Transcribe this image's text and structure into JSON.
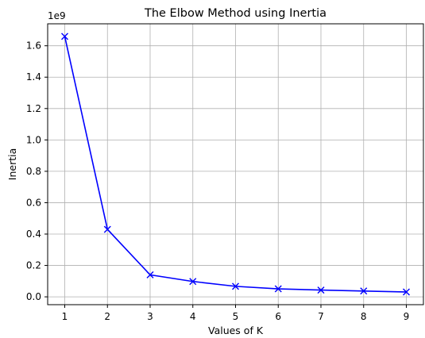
{
  "chart_data": {
    "type": "line",
    "title": "The Elbow Method using Inertia",
    "xlabel": "Values of K",
    "ylabel": "Inertia",
    "offset_label": "1e9",
    "x": [
      1,
      2,
      3,
      4,
      5,
      6,
      7,
      8,
      9
    ],
    "series": [
      {
        "values": [
          1.66,
          0.43,
          0.14,
          0.098,
          0.067,
          0.051,
          0.043,
          0.037,
          0.031
        ],
        "color": "#0000ff",
        "marker": "x"
      }
    ],
    "xlim": [
      0.6,
      9.4
    ],
    "ylim": [
      -0.05,
      1.74
    ],
    "x_ticks": [
      "1",
      "2",
      "3",
      "4",
      "5",
      "6",
      "7",
      "8",
      "9"
    ],
    "y_ticks": [
      "0.0",
      "0.2",
      "0.4",
      "0.6",
      "0.8",
      "1.0",
      "1.2",
      "1.4",
      "1.6"
    ],
    "grid": true
  }
}
